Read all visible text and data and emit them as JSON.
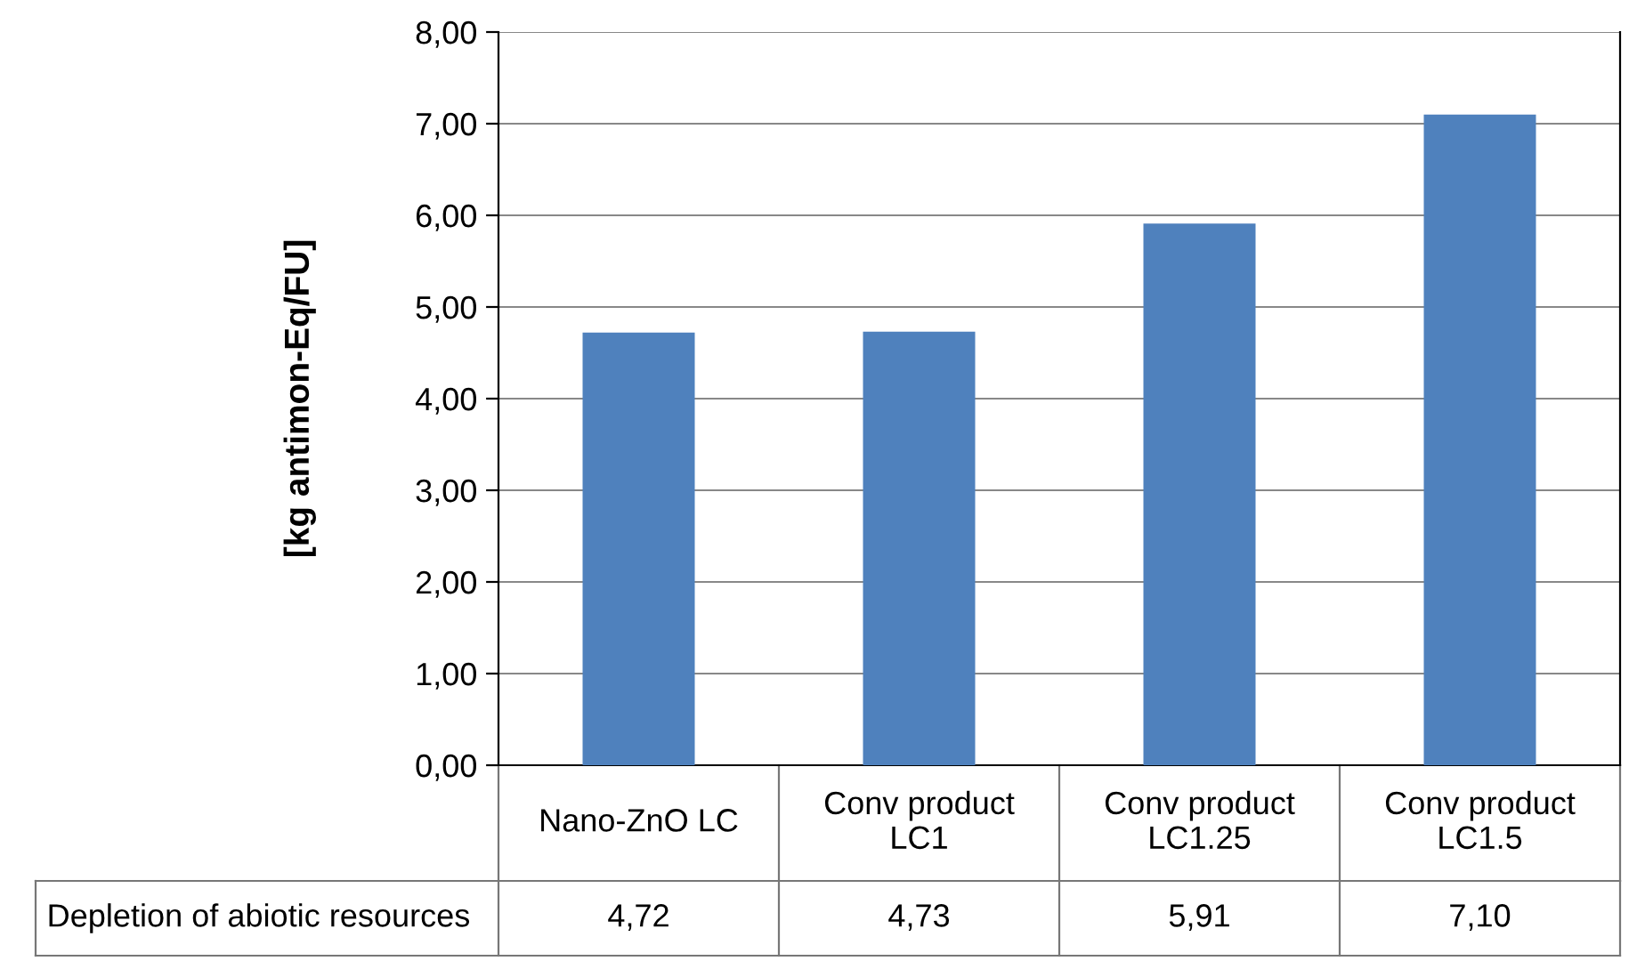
{
  "chart_data": {
    "type": "bar",
    "ylabel": "[kg antimon-Eq/FU]",
    "categories": [
      "Nano-ZnO LC",
      "Conv product LC1",
      "Conv product LC1.25",
      "Conv product LC1.5"
    ],
    "series": [
      {
        "name": "Depletion of abiotic resources",
        "color": "#4f81bd",
        "values": [
          4.72,
          4.73,
          5.91,
          7.1
        ],
        "value_labels": [
          "4,72",
          "4,73",
          "5,91",
          "7,10"
        ]
      }
    ],
    "ylim": [
      0,
      8
    ],
    "yticks": [
      {
        "value": 0,
        "label": "0,00"
      },
      {
        "value": 1,
        "label": "1,00"
      },
      {
        "value": 2,
        "label": "2,00"
      },
      {
        "value": 3,
        "label": "3,00"
      },
      {
        "value": 4,
        "label": "4,00"
      },
      {
        "value": 5,
        "label": "5,00"
      },
      {
        "value": 6,
        "label": "6,00"
      },
      {
        "value": 7,
        "label": "7,00"
      },
      {
        "value": 8,
        "label": "8,00"
      }
    ],
    "grid": "y",
    "legend": false
  }
}
